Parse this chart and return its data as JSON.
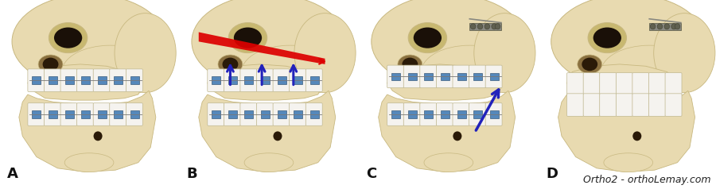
{
  "background_color": "#ffffff",
  "panels": [
    "A",
    "B",
    "C",
    "D"
  ],
  "label_fontsize": 13,
  "label_color": "#111111",
  "watermark_text": "Ortho2 - orthoLemay.com",
  "watermark_fontsize": 9,
  "watermark_color": "#222222",
  "fig_width": 9.0,
  "fig_height": 2.38,
  "dpi": 100,
  "red_arrow_color": "#dd0000",
  "blue_arrow_color": "#2222bb",
  "skull_face_color": "#e8dab0",
  "skull_edge_color": "#c8b880",
  "teeth_color": "#f5f3ef",
  "brace_color": "#5588bb",
  "hardware_color": "#888880"
}
